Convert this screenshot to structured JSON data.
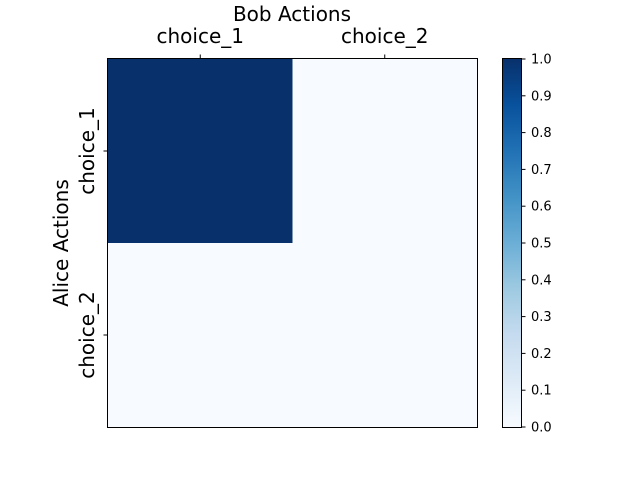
{
  "chart_data": {
    "type": "heatmap",
    "title": "",
    "xlabel": "Bob Actions",
    "ylabel": "Alice Actions",
    "x_categories": [
      "choice_1",
      "choice_2"
    ],
    "y_categories": [
      "choice_1",
      "choice_2"
    ],
    "values": [
      [
        1.0,
        0.0
      ],
      [
        0.0,
        0.0
      ]
    ],
    "colormap": "Blues",
    "colormap_low": "#f7fbff",
    "colormap_high": "#08306b",
    "colorbar": {
      "range": [
        0.0,
        1.0
      ],
      "ticks": [
        "0.0",
        "0.1",
        "0.2",
        "0.3",
        "0.4",
        "0.5",
        "0.6",
        "0.7",
        "0.8",
        "0.9",
        "1.0"
      ]
    },
    "x_axis_position": "top"
  }
}
